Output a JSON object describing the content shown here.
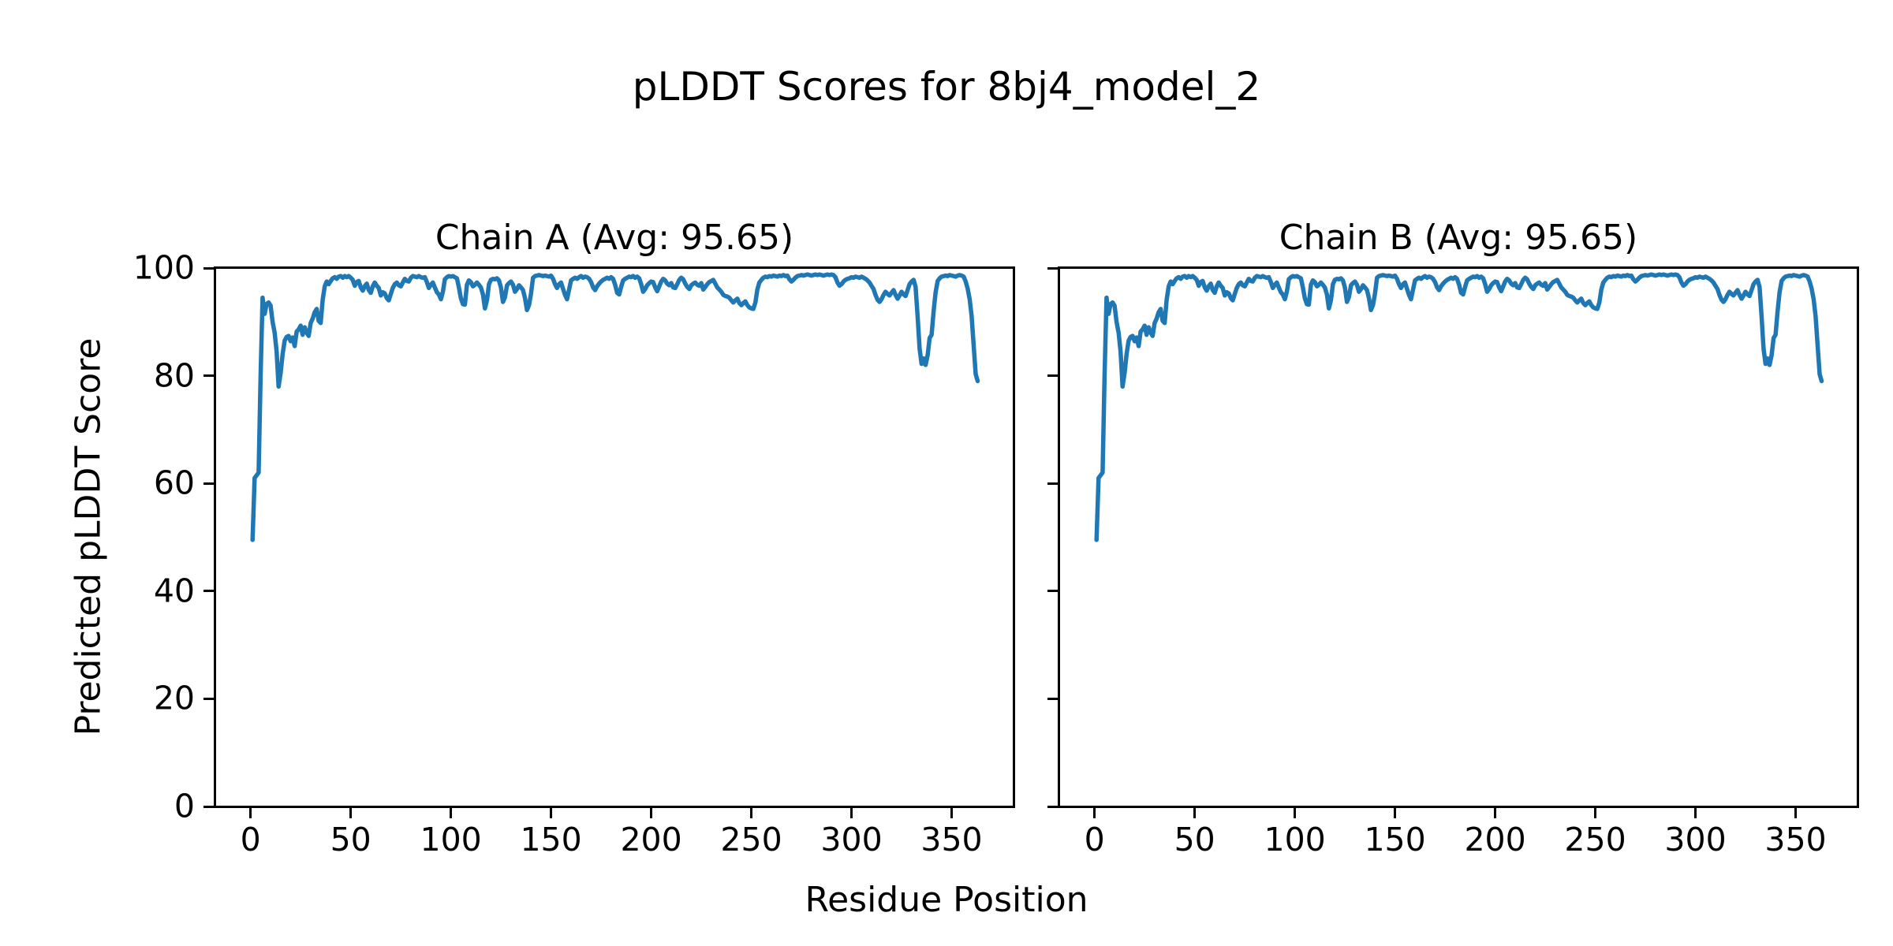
{
  "figure": {
    "suptitle": "pLDDT Scores for 8bj4_model_2",
    "xlabel": "Residue Position",
    "ylabel": "Predicted pLDDT Score",
    "background_color": "#ffffff",
    "text_color": "#000000",
    "line_color": "#1f77b4"
  },
  "chart_data": [
    {
      "type": "line",
      "title": "Chain A (Avg: 95.65)",
      "chain": "A",
      "average_plddt": 95.65,
      "xlim": [
        -17.6,
        380.9
      ],
      "ylim": [
        0,
        100
      ],
      "xticks": [
        0,
        50,
        100,
        150,
        200,
        250,
        300,
        350
      ],
      "yticks": [
        0,
        20,
        40,
        60,
        80,
        100
      ],
      "show_y_tick_labels": true,
      "grid": false,
      "legend": "none",
      "series": [
        {
          "name": "Chain A pLDDT",
          "color": "#1f77b4",
          "x_start": 1,
          "x_step": 1,
          "x_end": 363,
          "y": [
            49.5,
            61.0,
            61.5,
            62.0,
            80.0,
            94.5,
            91.5,
            93.3,
            93.6,
            93.0,
            90.0,
            88.0,
            84.5,
            78.0,
            80.5,
            84.0,
            86.5,
            87.2,
            87.4,
            86.4,
            87.1,
            85.5,
            88.2,
            88.6,
            89.3,
            87.6,
            89.0,
            88.0,
            87.4,
            89.8,
            90.6,
            91.8,
            92.4,
            90.2,
            89.8,
            94.1,
            96.6,
            97.5,
            97.0,
            97.6,
            98.1,
            98.3,
            98.0,
            98.4,
            98.5,
            98.2,
            98.5,
            98.3,
            98.5,
            98.2,
            97.8,
            96.7,
            97.4,
            97.6,
            96.4,
            95.8,
            96.6,
            97.1,
            95.9,
            95.4,
            96.6,
            97.3,
            96.7,
            96.3,
            94.9,
            95.5,
            95.3,
            94.4,
            94.0,
            95.2,
            96.3,
            97.0,
            97.3,
            96.8,
            96.6,
            97.3,
            98.0,
            97.6,
            97.5,
            98.2,
            98.5,
            98.4,
            98.3,
            98.5,
            98.3,
            98.2,
            98.3,
            97.4,
            96.3,
            96.9,
            97.3,
            96.4,
            95.5,
            95.1,
            94.2,
            95.6,
            97.9,
            98.3,
            98.5,
            98.4,
            98.5,
            98.3,
            98.1,
            96.4,
            94.4,
            93.3,
            93.2,
            96.9,
            97.7,
            97.4,
            96.6,
            96.9,
            97.3,
            96.9,
            96.4,
            95.1,
            92.5,
            94.0,
            97.0,
            97.8,
            98.0,
            97.9,
            98.1,
            97.7,
            96.4,
            93.7,
            94.6,
            96.8,
            97.2,
            97.5,
            96.9,
            95.6,
            96.1,
            96.8,
            96.4,
            95.9,
            94.4,
            92.2,
            93.1,
            95.2,
            98.2,
            98.5,
            98.6,
            98.7,
            98.6,
            98.5,
            98.6,
            98.5,
            98.4,
            98.6,
            98.0,
            97.0,
            96.3,
            97.0,
            97.3,
            96.1,
            95.0,
            94.2,
            96.0,
            97.7,
            98.0,
            98.2,
            98.0,
            98.3,
            98.5,
            98.2,
            98.4,
            98.3,
            98.0,
            97.4,
            96.4,
            95.9,
            96.6,
            97.1,
            97.5,
            97.8,
            98.0,
            98.2,
            98.0,
            98.3,
            98.0,
            96.9,
            95.4,
            95.1,
            96.5,
            97.7,
            98.0,
            98.2,
            98.4,
            98.3,
            98.5,
            98.2,
            98.4,
            98.1,
            97.0,
            95.6,
            96.1,
            96.8,
            97.2,
            97.5,
            97.4,
            96.4,
            95.7,
            96.6,
            97.5,
            98.0,
            97.7,
            97.1,
            96.8,
            97.2,
            96.4,
            96.3,
            97.0,
            97.8,
            98.2,
            97.9,
            97.1,
            96.5,
            96.1,
            96.8,
            97.1,
            97.3,
            96.9,
            96.7,
            97.2,
            96.0,
            96.5,
            97.0,
            97.4,
            97.6,
            97.8,
            97.1,
            96.4,
            96.0,
            95.6,
            95.0,
            94.8,
            94.7,
            94.5,
            94.0,
            93.6,
            94.0,
            94.3,
            93.5,
            93.1,
            93.5,
            93.8,
            93.1,
            92.7,
            92.5,
            92.4,
            93.6,
            96.0,
            97.3,
            97.8,
            98.2,
            98.4,
            98.3,
            98.5,
            98.4,
            98.6,
            98.5,
            98.4,
            98.6,
            98.5,
            98.7,
            98.5,
            98.6,
            97.9,
            97.5,
            97.8,
            98.2,
            98.5,
            98.6,
            98.7,
            98.6,
            98.7,
            98.8,
            98.7,
            98.6,
            98.7,
            98.8,
            98.7,
            98.8,
            98.7,
            98.6,
            98.7,
            98.8,
            98.7,
            98.8,
            98.7,
            98.3,
            97.3,
            96.7,
            97.0,
            97.5,
            97.8,
            98.0,
            98.1,
            98.3,
            98.2,
            98.4,
            98.3,
            98.2,
            98.4,
            98.2,
            98.0,
            97.7,
            97.3,
            96.7,
            96.1,
            95.0,
            94.1,
            93.7,
            94.2,
            95.0,
            95.6,
            95.2,
            94.9,
            95.4,
            95.9,
            95.0,
            94.3,
            94.9,
            95.6,
            95.1,
            94.8,
            95.9,
            97.0,
            97.5,
            97.8,
            96.5,
            91.0,
            85.0,
            82.2,
            83.2,
            82.0,
            83.8,
            87.0,
            87.6,
            92.0,
            95.5,
            97.6,
            98.1,
            98.4,
            98.5,
            98.6,
            98.5,
            98.7,
            98.6,
            98.5,
            98.4,
            98.6,
            98.7,
            98.6,
            98.4,
            97.5,
            96.2,
            94.2,
            91.0,
            85.5,
            80.3,
            79.0
          ]
        }
      ]
    },
    {
      "type": "line",
      "title": "Chain B (Avg: 95.65)",
      "chain": "B",
      "average_plddt": 95.65,
      "xlim": [
        -17.6,
        380.9
      ],
      "ylim": [
        0,
        100
      ],
      "xticks": [
        0,
        50,
        100,
        150,
        200,
        250,
        300,
        350
      ],
      "yticks": [
        0,
        20,
        40,
        60,
        80,
        100
      ],
      "show_y_tick_labels": false,
      "grid": false,
      "legend": "none",
      "series": [
        {
          "name": "Chain B pLDDT",
          "color": "#1f77b4",
          "x_start": 1,
          "x_step": 1,
          "x_end": 363,
          "identical_to": "chart_data.0.series.0",
          "y": "same_as_chain_a"
        }
      ]
    }
  ]
}
